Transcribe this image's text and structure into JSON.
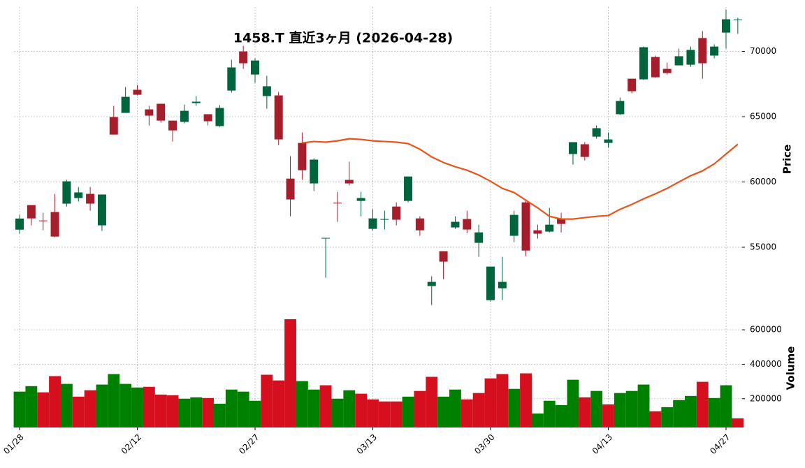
{
  "chart_data": {
    "type": "candlestick",
    "title": "1458.T  直近3ヶ月  (2026-04-28)",
    "categories": [
      "01/28",
      null,
      null,
      null,
      null,
      null,
      null,
      null,
      null,
      null,
      "02/12",
      null,
      null,
      null,
      null,
      null,
      null,
      null,
      null,
      null,
      "02/27",
      null,
      null,
      null,
      null,
      null,
      null,
      null,
      null,
      null,
      "03/13",
      null,
      null,
      null,
      null,
      null,
      null,
      null,
      null,
      null,
      "03/30",
      null,
      null,
      null,
      null,
      null,
      null,
      null,
      null,
      null,
      "04/13",
      null,
      null,
      null,
      null,
      null,
      null,
      null,
      null,
      null,
      "04/27",
      null
    ],
    "open": [
      56350,
      58230,
      57050,
      57700,
      58340,
      58770,
      59090,
      56680,
      64970,
      65290,
      67060,
      65560,
      65990,
      64700,
      64600,
      66040,
      65190,
      64280,
      67000,
      70000,
      68230,
      66580,
      66630,
      60260,
      62990,
      59890,
      55700,
      58410,
      60160,
      58550,
      56410,
      57130,
      58120,
      58550,
      57210,
      52030,
      54700,
      56520,
      57160,
      55340,
      50950,
      51860,
      55880,
      58440,
      56300,
      56200,
      57210,
      62140,
      62890,
      63470,
      62990,
      65190,
      67910,
      67860,
      69570,
      68660,
      68930,
      68980,
      71020,
      69680,
      71440,
      72410
    ],
    "high": [
      57480,
      58230,
      57640,
      59090,
      60160,
      59620,
      59620,
      59040,
      65830,
      67270,
      67430,
      65830,
      65990,
      64700,
      65930,
      66580,
      65190,
      65880,
      69360,
      70430,
      69470,
      68130,
      66900,
      61980,
      63800,
      61810,
      55720,
      59250,
      61550,
      59250,
      57910,
      57800,
      58440,
      60420,
      57370,
      52780,
      54700,
      57370,
      57800,
      56730,
      53520,
      54270,
      57800,
      58550,
      56730,
      58020,
      57640,
      63050,
      63050,
      64330,
      63800,
      66470,
      67910,
      70370,
      69680,
      69140,
      70210,
      70370,
      71550,
      70540,
      73210,
      72570
    ],
    "low": [
      56040,
      56680,
      56300,
      55770,
      58120,
      58500,
      57800,
      56250,
      63630,
      65290,
      66630,
      64330,
      64540,
      63100,
      64490,
      65830,
      64330,
      64220,
      66840,
      68660,
      67590,
      65610,
      62830,
      57370,
      60160,
      59300,
      52670,
      56950,
      59730,
      57370,
      56300,
      56360,
      56680,
      58440,
      55880,
      50580,
      52560,
      56410,
      56090,
      54270,
      50850,
      50950,
      55390,
      54320,
      55660,
      56140,
      56140,
      61330,
      61650,
      63310,
      62620,
      65130,
      66790,
      67810,
      67970,
      68230,
      68930,
      68820,
      67910,
      69470,
      70210,
      71340
    ],
    "close": [
      57200,
      57210,
      57000,
      55820,
      60050,
      59200,
      58340,
      59040,
      63630,
      66520,
      66680,
      65080,
      64700,
      63950,
      65450,
      66150,
      64650,
      65670,
      68770,
      69090,
      69300,
      67330,
      63260,
      58660,
      60900,
      61710,
      55720,
      58390,
      59890,
      58770,
      57210,
      57160,
      57110,
      60420,
      56300,
      52350,
      53900,
      56950,
      56360,
      56140,
      53520,
      52350,
      57480,
      54750,
      56040,
      56730,
      56790,
      63050,
      61920,
      64120,
      63260,
      66200,
      66950,
      70320,
      68020,
      68340,
      69630,
      70110,
      69090,
      70370,
      72460,
      72440
    ],
    "up_color": "#00643c",
    "down_color": "#a61e2b",
    "ylabel": "Price",
    "ylim": [
      50400,
      73400
    ],
    "yticks": [
      55000,
      60000,
      65000,
      70000
    ],
    "grid": true,
    "ma": {
      "color": "#e8541a",
      "values": [
        null,
        null,
        null,
        null,
        null,
        null,
        null,
        null,
        null,
        null,
        null,
        null,
        null,
        null,
        null,
        null,
        null,
        null,
        null,
        null,
        null,
        null,
        null,
        null,
        62990,
        63100,
        63050,
        63150,
        63310,
        63260,
        63150,
        63100,
        63050,
        62940,
        62510,
        61920,
        61490,
        61170,
        60900,
        60530,
        60050,
        59510,
        59190,
        58600,
        58020,
        57370,
        57160,
        57160,
        57270,
        57370,
        57430,
        57910,
        58280,
        58710,
        59090,
        59510,
        60000,
        60480,
        60850,
        61390,
        62140,
        62890
      ]
    },
    "volume": {
      "ylabel": "Volume",
      "values": [
        241000,
        273000,
        237000,
        331000,
        286000,
        212000,
        249000,
        282000,
        343000,
        286000,
        265000,
        269000,
        224000,
        220000,
        200000,
        208000,
        204000,
        171000,
        253000,
        241000,
        188000,
        339000,
        306000,
        661000,
        302000,
        253000,
        278000,
        200000,
        249000,
        229000,
        196000,
        184000,
        184000,
        212000,
        245000,
        327000,
        212000,
        253000,
        196000,
        233000,
        318000,
        343000,
        257000,
        347000,
        114000,
        188000,
        163000,
        310000,
        208000,
        245000,
        167000,
        233000,
        245000,
        282000,
        127000,
        151000,
        192000,
        216000,
        298000,
        204000,
        278000,
        86000
      ],
      "up_color": "#008000",
      "down_color": "#d60f1f",
      "ylim": [
        33000,
        730000
      ],
      "yticks": [
        200000,
        400000,
        600000
      ]
    }
  }
}
